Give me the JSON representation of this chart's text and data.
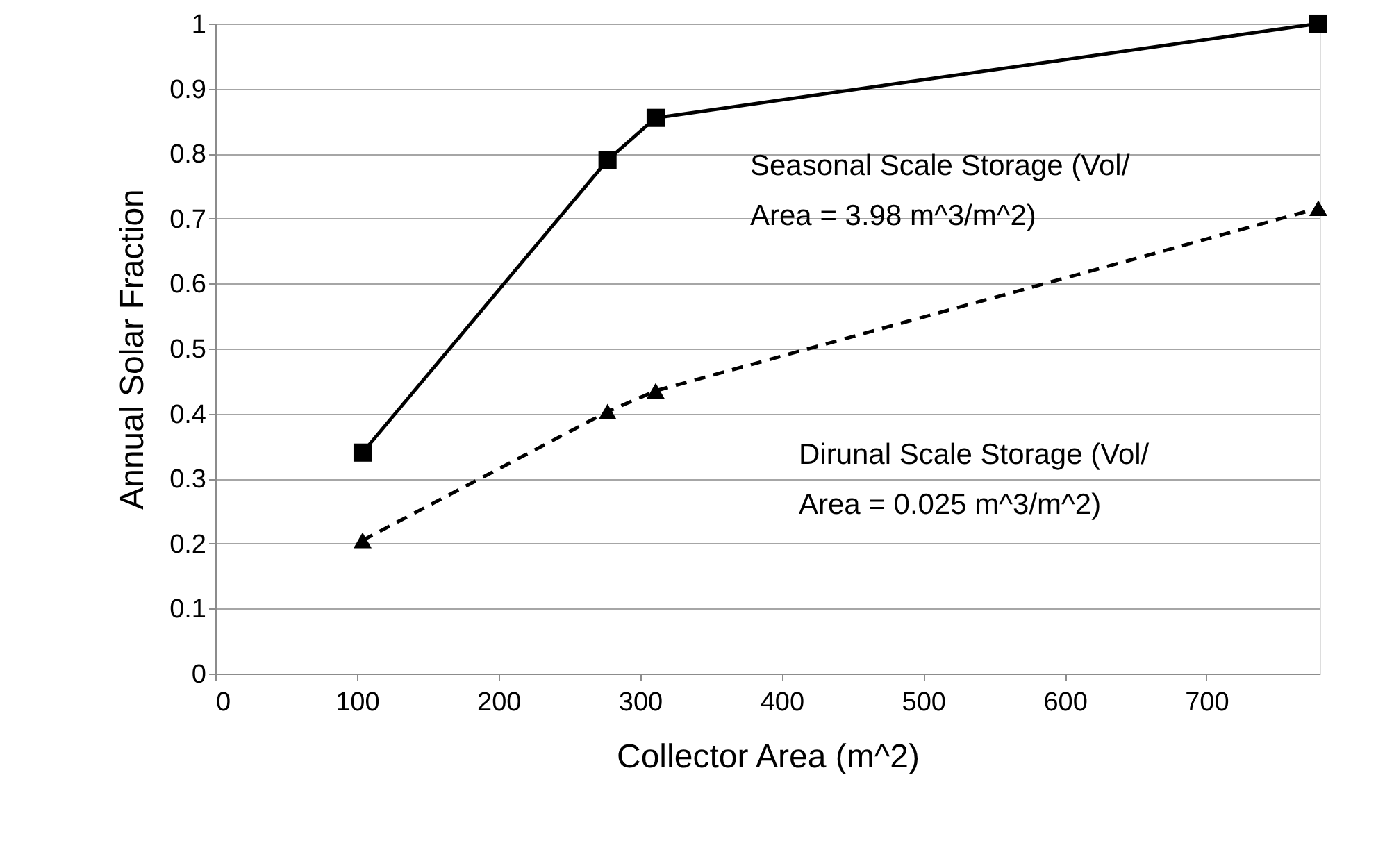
{
  "chart_data": {
    "type": "line",
    "xlabel": "Collector Area (m^2)",
    "ylabel": "Annual Solar Fraction",
    "xlim": [
      0,
      780
    ],
    "xticks": [
      0,
      100,
      200,
      300,
      400,
      500,
      600,
      700
    ],
    "ylim": [
      0,
      1
    ],
    "yticks": [
      0,
      0.1,
      0.2,
      0.3,
      0.4,
      0.5,
      0.6,
      0.7,
      0.8,
      0.9,
      1
    ],
    "grid": "y",
    "series": [
      {
        "x": [
          104,
          277,
          311,
          779
        ],
        "values": [
          0.34,
          0.79,
          0.855,
          1.0
        ],
        "color": "#000000",
        "marker": "square",
        "line_style": "solid"
      },
      {
        "x": [
          104,
          277,
          311,
          779
        ],
        "values": [
          0.205,
          0.403,
          0.435,
          0.716
        ],
        "color": "#000000",
        "marker": "triangle",
        "line_style": "dashed"
      }
    ],
    "annotations": [
      "Seasonal Scale Storage (Vol/\nArea = 3.98 m^3/m^2)",
      "Dirunal Scale Storage (Vol/\nArea = 0.025 m^3/m^2)"
    ]
  }
}
